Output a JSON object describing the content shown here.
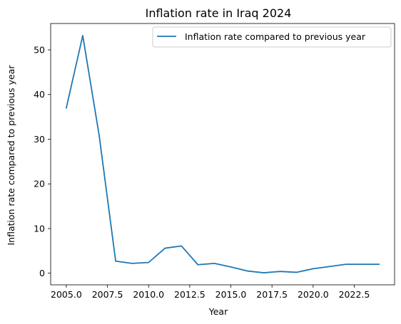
{
  "chart_data": {
    "type": "line",
    "title": "Inflation rate in Iraq 2024",
    "xlabel": "Year",
    "ylabel": "Inflation rate compared to previous year",
    "xlim": [
      2004.05,
      2024.95
    ],
    "ylim": [
      -2.6,
      55.9
    ],
    "x_ticks": [
      2005.0,
      2007.5,
      2010.0,
      2012.5,
      2015.0,
      2017.5,
      2020.0,
      2022.5
    ],
    "x_tick_labels": [
      "2005.0",
      "2007.5",
      "2010.0",
      "2012.5",
      "2015.0",
      "2017.5",
      "2020.0",
      "2022.5"
    ],
    "y_ticks": [
      0,
      10,
      20,
      30,
      40,
      50
    ],
    "y_tick_labels": [
      "0",
      "10",
      "20",
      "30",
      "40",
      "50"
    ],
    "grid": false,
    "legend_position": "top-right",
    "series": [
      {
        "name": "Inflation rate compared to previous year",
        "color": "#1f77b4",
        "x": [
          2005,
          2006,
          2007,
          2008,
          2009,
          2010,
          2011,
          2012,
          2013,
          2014,
          2015,
          2016,
          2017,
          2018,
          2019,
          2020,
          2021,
          2022,
          2023,
          2024
        ],
        "y": [
          37,
          53.2,
          30.8,
          2.7,
          2.2,
          2.4,
          5.6,
          6.1,
          1.9,
          2.2,
          1.4,
          0.5,
          0.1,
          0.4,
          0.2,
          1.0,
          1.5,
          2.0,
          2.0,
          2.0
        ]
      }
    ]
  }
}
